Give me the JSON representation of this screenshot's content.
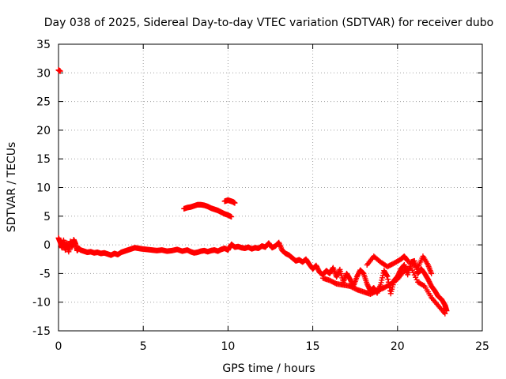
{
  "chart_data": {
    "type": "scatter",
    "title": "Day 038 of 2025, Sidereal Day-to-day VTEC variation (SDTVAR) for receiver dubo",
    "xlabel": "GPS time / hours",
    "ylabel": "SDTVAR / TECUs",
    "xlim": [
      0,
      25
    ],
    "ylim": [
      -15,
      35
    ],
    "xticks": [
      0,
      5,
      10,
      15,
      20,
      25
    ],
    "yticks": [
      -15,
      -10,
      -5,
      0,
      5,
      10,
      15,
      20,
      25,
      30,
      35
    ],
    "grid": true,
    "marker": "plus",
    "color": "#ff0000",
    "series": [
      {
        "name": "main",
        "x": [
          0.0,
          0.1,
          0.2,
          0.3,
          0.4,
          0.5,
          0.6,
          0.7,
          0.8,
          0.9,
          1.0,
          1.1,
          1.2,
          1.3,
          1.5,
          1.7,
          1.9,
          2.1,
          2.3,
          2.5,
          2.7,
          2.9,
          3.1,
          3.3,
          3.5,
          3.7,
          3.9,
          4.1,
          4.3,
          4.5,
          4.7,
          4.9,
          5.2,
          5.5,
          5.8,
          6.1,
          6.4,
          6.7,
          7.0,
          7.3,
          7.6,
          7.8,
          8.0,
          8.2,
          8.4,
          8.6,
          8.8,
          9.0,
          9.2,
          9.4,
          9.6,
          9.8,
          10.0,
          10.2,
          10.4,
          10.6,
          10.8,
          11.0,
          11.2,
          11.4,
          11.6,
          11.8,
          12.0,
          12.2,
          12.4,
          12.6,
          12.8,
          13.0,
          13.2,
          13.4,
          13.6,
          13.8,
          14.0,
          14.2,
          14.4,
          14.6,
          14.8,
          15.0,
          15.2,
          15.4,
          15.6,
          15.8,
          16.0,
          16.2,
          16.4,
          16.6,
          16.8,
          17.0,
          17.2,
          17.4,
          17.6,
          17.8,
          18.0,
          18.2,
          18.4,
          18.6,
          18.8,
          19.0,
          19.2,
          19.4,
          19.6,
          19.8,
          20.0,
          20.2,
          20.4,
          20.6,
          20.8,
          21.0,
          21.2,
          21.4,
          21.6,
          21.8,
          22.0,
          22.2,
          22.4,
          22.6,
          22.8,
          22.9
        ],
        "y": [
          1.2,
          0.5,
          -0.5,
          0.8,
          -0.9,
          0.3,
          -1.2,
          0.6,
          -0.4,
          0.9,
          0.2,
          -1.0,
          -0.6,
          -0.9,
          -1.1,
          -1.3,
          -1.2,
          -1.4,
          -1.3,
          -1.5,
          -1.4,
          -1.6,
          -1.8,
          -1.5,
          -1.7,
          -1.3,
          -1.1,
          -0.9,
          -0.7,
          -0.5,
          -0.6,
          -0.7,
          -0.8,
          -0.9,
          -1.0,
          -0.9,
          -1.1,
          -1.0,
          -0.8,
          -1.1,
          -0.9,
          -1.2,
          -1.4,
          -1.3,
          -1.1,
          -1.0,
          -1.2,
          -1.0,
          -0.9,
          -1.1,
          -0.8,
          -0.6,
          -0.9,
          0.1,
          -0.4,
          -0.3,
          -0.5,
          -0.6,
          -0.4,
          -0.7,
          -0.5,
          -0.6,
          -0.2,
          -0.4,
          0.3,
          -0.5,
          -0.2,
          0.4,
          -1.0,
          -1.5,
          -1.8,
          -2.3,
          -2.8,
          -2.6,
          -3.0,
          -2.5,
          -3.4,
          -4.2,
          -3.6,
          -4.8,
          -5.2,
          -4.5,
          -5.0,
          -4.0,
          -5.6,
          -4.3,
          -6.5,
          -5.0,
          -6.0,
          -7.2,
          -5.6,
          -4.4,
          -5.0,
          -6.8,
          -8.0,
          -7.5,
          -8.4,
          -7.0,
          -4.5,
          -5.5,
          -8.5,
          -6.2,
          -5.5,
          -4.2,
          -3.5,
          -5.2,
          -3.0,
          -2.8,
          -5.0,
          -4.2,
          -5.0,
          -6.0,
          -7.2,
          -8.0,
          -9.0,
          -9.5,
          -10.5,
          -11.5
        ]
      },
      {
        "name": "lower-band",
        "x": [
          15.6,
          16.0,
          16.4,
          16.8,
          17.2,
          17.6,
          18.0,
          18.4,
          18.8,
          19.2,
          19.6,
          20.0,
          20.4,
          20.8,
          21.2,
          21.6,
          22.0,
          22.4,
          22.8
        ],
        "y": [
          -5.8,
          -6.2,
          -6.8,
          -7.0,
          -7.2,
          -7.8,
          -8.2,
          -8.6,
          -8.0,
          -7.5,
          -6.8,
          -6.0,
          -4.5,
          -4.0,
          -6.5,
          -7.2,
          -9.2,
          -10.6,
          -12.0
        ]
      },
      {
        "name": "upper-spikes",
        "x": [
          18.2,
          18.6,
          19.0,
          19.4,
          19.8,
          20.2,
          20.4,
          20.6,
          21.2,
          21.5,
          21.8,
          22.0
        ],
        "y": [
          -3.5,
          -2.0,
          -3.0,
          -3.8,
          -3.2,
          -2.5,
          -2.0,
          -2.8,
          -4.0,
          -2.0,
          -3.5,
          -5.0
        ]
      },
      {
        "name": "elevated-arc",
        "x": [
          7.4,
          7.6,
          7.8,
          8.0,
          8.2,
          8.4,
          8.6,
          8.8,
          9.0,
          9.2,
          9.4,
          9.6,
          9.8,
          10.0,
          10.2
        ],
        "y": [
          6.3,
          6.5,
          6.6,
          6.8,
          7.0,
          7.0,
          6.9,
          6.7,
          6.4,
          6.2,
          6.0,
          5.7,
          5.4,
          5.2,
          4.9
        ]
      },
      {
        "name": "elevated-blip",
        "x": [
          9.8,
          9.9,
          10.0,
          10.1,
          10.2,
          10.3,
          10.4
        ],
        "y": [
          7.6,
          7.7,
          7.8,
          7.7,
          7.6,
          7.5,
          7.3
        ]
      },
      {
        "name": "outlier",
        "x": [
          0.0,
          0.1
        ],
        "y": [
          30.5,
          30.3
        ]
      }
    ]
  }
}
